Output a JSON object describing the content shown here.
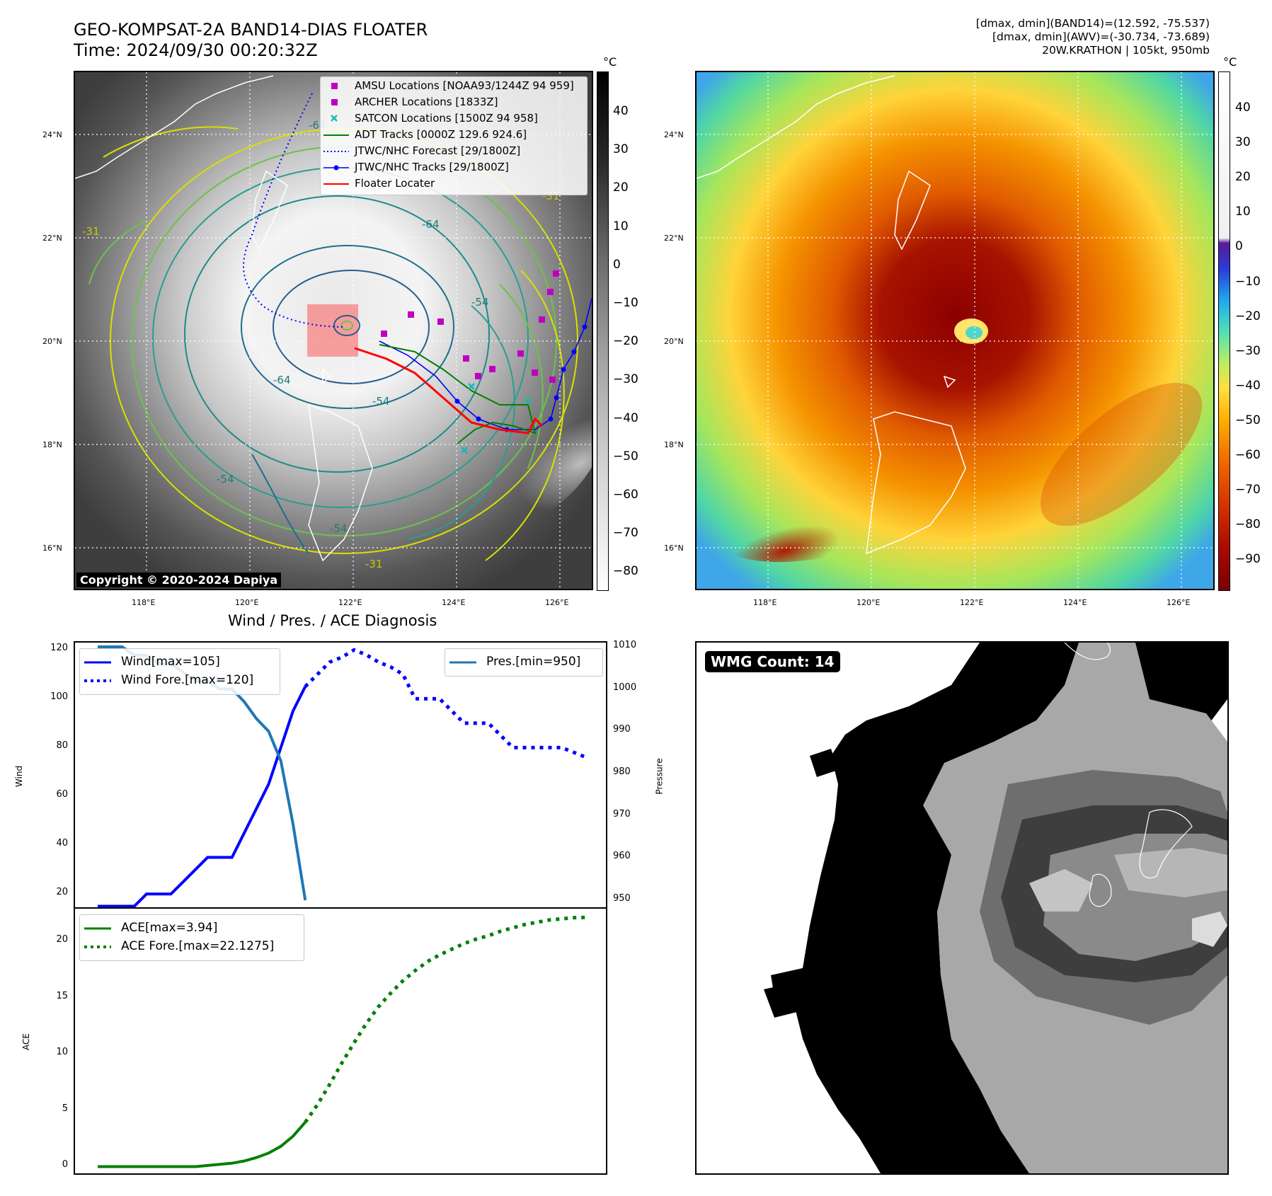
{
  "header": {
    "title_line1": "GEO-KOMPSAT-2A BAND14-DIAS FLOATER",
    "title_line2": "Time: 2024/09/30 00:20:32Z",
    "info_line1": "[dmax, dmin](BAND14)=(12.592, -75.537)",
    "info_line2": "[dmax, dmin](AWV)=(-30.734, -73.689)",
    "info_line3": "20W.KRATHON | 105kt, 950mb"
  },
  "map": {
    "lat_labels": [
      "24°N",
      "22°N",
      "20°N",
      "18°N",
      "16°N"
    ],
    "lon_labels": [
      "118°E",
      "120°E",
      "122°E",
      "124°E",
      "126°E"
    ],
    "contour_labels": [
      "-64",
      "-64",
      "-54",
      "-54",
      "-31",
      "-31",
      "-31",
      "-64",
      "-54",
      "-54"
    ],
    "copyright": "Copyright © 2020-2024 Dapiya",
    "legend": [
      {
        "label": "AMSU Locations [NOAA93/1244Z 94 959]",
        "marker": "square",
        "color": "#c000c0"
      },
      {
        "label": "ARCHER Locations [1833Z]",
        "marker": "square",
        "color": "#c000c0"
      },
      {
        "label": "SATCON Locations [1500Z 94 958]",
        "marker": "x",
        "color": "#17b7b7"
      },
      {
        "label": "ADT Tracks [0000Z 129.6 924.6]",
        "marker": "line",
        "color": "#008000"
      },
      {
        "label": "JTWC/NHC Forecast [29/1800Z]",
        "marker": "dotted",
        "color": "#0000ff"
      },
      {
        "label": "JTWC/NHC Tracks [29/1800Z]",
        "marker": "line-dot",
        "color": "#0000ff"
      },
      {
        "label": "Floater Locater",
        "marker": "line",
        "color": "#ff0000"
      }
    ]
  },
  "colorbar_gray": {
    "unit": "°C",
    "ticks": [
      "40",
      "30",
      "20",
      "10",
      "0",
      "−10",
      "−20",
      "−30",
      "−40",
      "−50",
      "−60",
      "−70",
      "−80"
    ]
  },
  "colorbar_color": {
    "unit": "°C",
    "ticks": [
      "40",
      "30",
      "20",
      "10",
      "0",
      "−10",
      "−20",
      "−30",
      "−40",
      "−50",
      "−60",
      "−70",
      "−80",
      "−90"
    ]
  },
  "diagnosis": {
    "title": "Wind / Pres. / ACE Diagnosis",
    "wind_ylabel": "Wind",
    "pres_ylabel": "Pressure",
    "ace_ylabel": "ACE",
    "wind_ticks": [
      "120",
      "100",
      "80",
      "60",
      "40",
      "20"
    ],
    "pres_ticks": [
      "1010",
      "1000",
      "990",
      "980",
      "970",
      "960",
      "950"
    ],
    "ace_ticks": [
      "20",
      "15",
      "10",
      "5",
      "0"
    ],
    "legend_wind": "Wind[max=105]",
    "legend_wind_fore": "Wind Fore.[max=120]",
    "legend_pres": "Pres.[min=950]",
    "legend_ace": "ACE[max=3.94]",
    "legend_ace_fore": "ACE Fore.[max=22.1275]"
  },
  "chart_data": [
    {
      "type": "line",
      "title": "Wind / Pres. / ACE Diagnosis",
      "ylabel": "Wind",
      "ylim": [
        14,
        123
      ],
      "x": [
        0,
        1,
        2,
        3,
        4,
        5,
        6,
        7,
        8,
        9,
        10,
        11,
        12,
        13,
        14,
        15,
        16,
        17,
        18,
        19,
        20,
        21,
        22,
        23,
        24,
        25,
        26,
        27,
        28,
        29,
        30,
        31,
        32,
        33,
        34,
        35,
        36,
        37,
        38,
        39,
        40
      ],
      "series": [
        {
          "name": "Wind[max=105]",
          "color": "#0000ff",
          "style": "solid",
          "x": [
            0,
            1,
            2,
            3,
            4,
            5,
            6,
            7,
            8,
            9,
            10,
            11,
            12,
            13,
            14,
            15,
            16,
            17
          ],
          "values": [
            15,
            15,
            15,
            15,
            20,
            20,
            20,
            25,
            30,
            35,
            35,
            35,
            45,
            55,
            65,
            80,
            95,
            105
          ]
        },
        {
          "name": "Wind Fore.[max=120]",
          "color": "#0000ff",
          "style": "dotted",
          "x": [
            17,
            18,
            19,
            20,
            21,
            22,
            23,
            24,
            25,
            26,
            27,
            28,
            29,
            30,
            31,
            32,
            33,
            34,
            35,
            36,
            37,
            38,
            39,
            40
          ],
          "values": [
            105,
            110,
            115,
            117,
            120,
            118,
            115,
            113,
            110,
            100,
            100,
            100,
            95,
            90,
            90,
            90,
            85,
            80,
            80,
            80,
            80,
            80,
            78,
            76
          ]
        },
        {
          "name": "Pres.[min=950]",
          "color": "#1f77b4",
          "style": "solid",
          "axis": "right",
          "ylim": [
            948,
            1011
          ],
          "x": [
            0,
            1,
            2,
            3,
            4,
            5,
            6,
            7,
            8,
            9,
            10,
            11,
            12,
            13,
            14,
            15,
            16,
            17
          ],
          "values": [
            1010,
            1010,
            1010,
            1008,
            1008,
            1006,
            1006,
            1004,
            1002,
            1002,
            1000,
            1000,
            997,
            993,
            990,
            983,
            968,
            950
          ]
        }
      ]
    },
    {
      "type": "line",
      "ylabel": "ACE",
      "ylim": [
        -0.6,
        22.9
      ],
      "series": [
        {
          "name": "ACE[max=3.94]",
          "color": "#008000",
          "style": "solid",
          "x": [
            0,
            1,
            2,
            3,
            4,
            5,
            6,
            7,
            8,
            9,
            10,
            11,
            12,
            13,
            14,
            15,
            16,
            17
          ],
          "values": [
            0,
            0,
            0,
            0,
            0,
            0,
            0,
            0,
            0,
            0.1,
            0.2,
            0.3,
            0.5,
            0.8,
            1.2,
            1.8,
            2.7,
            3.94
          ]
        },
        {
          "name": "ACE Fore.[max=22.1275]",
          "color": "#008000",
          "style": "dotted",
          "x": [
            17,
            18,
            19,
            20,
            21,
            22,
            23,
            24,
            25,
            26,
            27,
            28,
            29,
            30,
            31,
            32,
            33,
            34,
            35,
            36,
            37,
            38,
            39,
            40
          ],
          "values": [
            3.94,
            5.5,
            7.3,
            9.2,
            11.0,
            12.7,
            14.2,
            15.4,
            16.5,
            17.4,
            18.2,
            18.8,
            19.3,
            19.8,
            20.2,
            20.5,
            20.9,
            21.2,
            21.5,
            21.7,
            21.9,
            22.0,
            22.1,
            22.1275
          ]
        }
      ]
    }
  ],
  "wmg": {
    "count_label": "WMG Count: 14"
  }
}
